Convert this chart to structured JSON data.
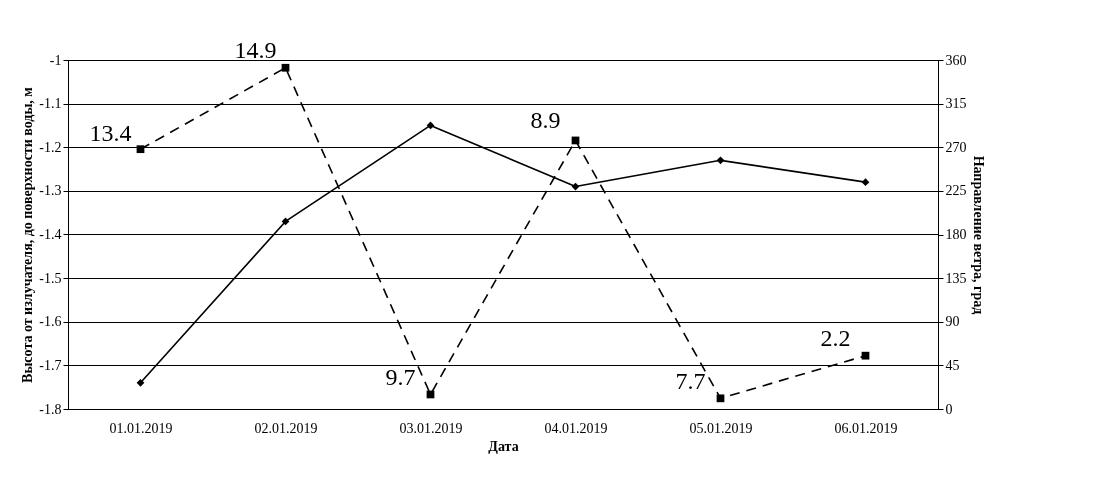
{
  "chart_data": {
    "type": "line",
    "xlabel": "Дата",
    "ylabel": "Высота от излучателя, до поверхности воды, м",
    "y2label": "Направление ветра, град",
    "categories": [
      "01.01.2019",
      "02.01.2019",
      "03.01.2019",
      "04.01.2019",
      "05.01.2019",
      "06.01.2019"
    ],
    "series": [
      {
        "color": "#000000",
        "marker": "diamond",
        "line_style": "solid",
        "values": [
          -1.74,
          -1.37,
          -1.15,
          -1.29,
          -1.23,
          -1.28
        ]
      },
      {
        "color": "#000000",
        "marker": "square",
        "line_style": "dashed",
        "axis": "y2",
        "values": [
          268,
          352,
          15,
          277,
          11,
          55
        ]
      }
    ],
    "annotations": [
      {
        "text": "13.4",
        "x": "01.01.2019",
        "y": -1.21
      },
      {
        "text": "14.9",
        "x": "02.01.2019",
        "y": -1.02
      },
      {
        "text": "9.7",
        "x": "03.01.2019",
        "y": -1.77
      },
      {
        "text": "8.9",
        "x": "04.01.2019",
        "y": -1.18
      },
      {
        "text": "7.7",
        "x": "05.01.2019",
        "y": -1.78
      },
      {
        "text": "2.2",
        "x": "06.01.2019",
        "y": -1.68
      }
    ],
    "ylim": [
      -1.8,
      -1
    ],
    "yticks": [
      -1.8,
      -1.7,
      -1.6,
      -1.5,
      -1.4,
      -1.3,
      -1.2,
      -1.1,
      -1
    ],
    "y2lim": [
      0,
      360
    ],
    "y2ticks": [
      0,
      45,
      90,
      135,
      180,
      225,
      270,
      315,
      360
    ],
    "grid": "y"
  }
}
